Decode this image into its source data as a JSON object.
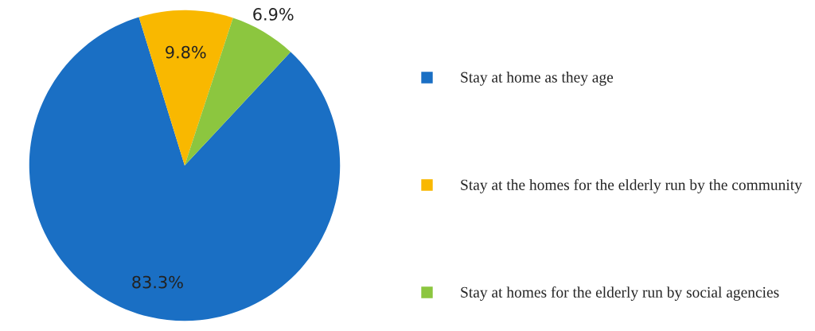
{
  "chart_data": {
    "type": "pie",
    "categories": [
      "Stay at home as they age",
      "Stay at the homes for the elderly run by the community",
      "Stay at homes for the elderly run by social agencies"
    ],
    "values": [
      83.3,
      9.8,
      6.9
    ],
    "colors": [
      "#1a6fc4",
      "#f9b800",
      "#8cc63f"
    ],
    "value_labels": [
      "83.3%",
      "9.8%",
      "6.9%"
    ],
    "legend": "right"
  }
}
